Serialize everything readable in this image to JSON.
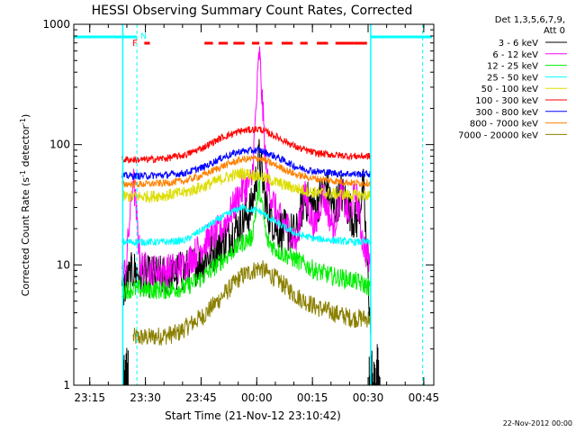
{
  "chart_data": {
    "type": "line",
    "title": "HESSI Observing Summary Count Rates, Corrected",
    "xlabel": "Start Time (21-Nov-12 23:10:42)",
    "ylabel_main": "Corrected Count Rate (s",
    "ylabel_sup1": "-1",
    "ylabel_mid": " detector",
    "ylabel_sup2": "-1",
    "ylabel_end": ")",
    "y_scale": "log",
    "ylim": [
      1,
      1000
    ],
    "x_unit": "minutes after 23:10:42",
    "xlim": [
      0,
      97
    ],
    "x_ticks": [
      {
        "m": 4.3,
        "label": "23:15"
      },
      {
        "m": 19.3,
        "label": "23:30"
      },
      {
        "m": 34.3,
        "label": "23:45"
      },
      {
        "m": 49.3,
        "label": "00:00"
      },
      {
        "m": 64.3,
        "label": "00:15"
      },
      {
        "m": 79.3,
        "label": "00:30"
      },
      {
        "m": 94.3,
        "label": "00:45"
      }
    ],
    "y_ticks": [
      {
        "v": 1,
        "label": "1"
      },
      {
        "v": 10,
        "label": "10"
      },
      {
        "v": 100,
        "label": "100"
      },
      {
        "v": 1000,
        "label": "1000"
      }
    ],
    "legend_header_1": "Det 1,3,5,6,7,9,",
    "legend_header_2": "Att 0",
    "legend_placement": "right",
    "series": [
      {
        "name": "3 - 6 keV",
        "color": "#000000",
        "x": [
          13,
          16,
          20,
          25,
          30,
          35,
          40,
          45,
          48,
          50,
          52,
          55,
          60,
          62,
          65,
          68,
          70,
          72,
          74,
          76,
          78,
          80
        ],
        "values": [
          6,
          9,
          8,
          8,
          9,
          11,
          15,
          22,
          30,
          80,
          28,
          20,
          18,
          35,
          30,
          45,
          28,
          40,
          30,
          22,
          45,
          3
        ]
      },
      {
        "name": "6 - 12 keV",
        "color": "#ff00ff",
        "x": [
          13,
          14,
          16,
          18,
          20,
          25,
          30,
          35,
          40,
          45,
          48,
          50,
          52,
          55,
          58,
          60,
          62,
          65,
          67,
          70,
          72,
          74,
          76,
          78,
          80
        ],
        "values": [
          8,
          9,
          55,
          10,
          9,
          9,
          10,
          15,
          20,
          40,
          50,
          600,
          50,
          25,
          20,
          15,
          40,
          20,
          40,
          20,
          40,
          25,
          40,
          15,
          10
        ]
      },
      {
        "name": "12 - 25 keV",
        "color": "#00ee00",
        "x": [
          13,
          16,
          20,
          25,
          30,
          35,
          40,
          45,
          48,
          50,
          52,
          55,
          60,
          65,
          70,
          75,
          80
        ],
        "values": [
          6.2,
          6.3,
          6.2,
          6.2,
          6.5,
          8,
          11,
          15,
          17,
          45,
          16,
          13,
          11,
          9,
          8,
          7.5,
          6.5
        ]
      },
      {
        "name": "25 - 50 keV",
        "color": "#00ffff",
        "x": [
          13,
          16,
          20,
          25,
          30,
          35,
          40,
          45,
          50,
          55,
          60,
          65,
          70,
          75,
          80
        ],
        "values": [
          15.5,
          15.5,
          15.5,
          15.5,
          16,
          20,
          25,
          30,
          28,
          22,
          18,
          16.5,
          16,
          15.5,
          15.5
        ]
      },
      {
        "name": "50 - 100 keV",
        "color": "#dddd00",
        "x": [
          13,
          16,
          20,
          25,
          30,
          35,
          40,
          45,
          50,
          55,
          60,
          65,
          70,
          75,
          80
        ],
        "values": [
          37,
          37,
          37,
          38,
          40,
          45,
          52,
          58,
          55,
          48,
          43,
          40,
          39,
          38,
          38
        ]
      },
      {
        "name": "100 - 300 keV",
        "color": "#ff0000",
        "x": [
          13,
          16,
          20,
          25,
          30,
          35,
          40,
          45,
          50,
          55,
          60,
          65,
          70,
          75,
          80
        ],
        "values": [
          75,
          75,
          75,
          77,
          82,
          95,
          115,
          130,
          135,
          115,
          95,
          85,
          82,
          80,
          80
        ]
      },
      {
        "name": "300 - 800 keV",
        "color": "#0000ff",
        "x": [
          13,
          16,
          20,
          25,
          30,
          35,
          40,
          45,
          50,
          55,
          60,
          65,
          70,
          75,
          80
        ],
        "values": [
          55,
          55,
          55,
          56,
          58,
          65,
          78,
          88,
          90,
          78,
          65,
          60,
          58,
          57,
          57
        ]
      },
      {
        "name": "800 - 7000 keV",
        "color": "#ff8000",
        "x": [
          13,
          16,
          20,
          25,
          30,
          35,
          40,
          45,
          50,
          55,
          60,
          65,
          70,
          75,
          80
        ],
        "values": [
          47,
          47,
          47,
          48,
          50,
          56,
          66,
          75,
          77,
          66,
          56,
          52,
          50,
          48,
          48
        ]
      },
      {
        "name": "7000 - 20000 keV",
        "color": "#8b8000",
        "x": [
          16,
          20,
          25,
          28,
          30,
          35,
          40,
          45,
          50,
          55,
          60,
          65,
          70,
          75,
          80
        ],
        "values": [
          2.5,
          2.5,
          2.6,
          2.7,
          3,
          3.8,
          5.5,
          8,
          9.5,
          7.5,
          5.5,
          4.5,
          4,
          3.6,
          3.6
        ]
      }
    ],
    "flag_labels": {
      "n": "N",
      "f": "F"
    },
    "footer": "22-Nov-2012 00:00"
  }
}
